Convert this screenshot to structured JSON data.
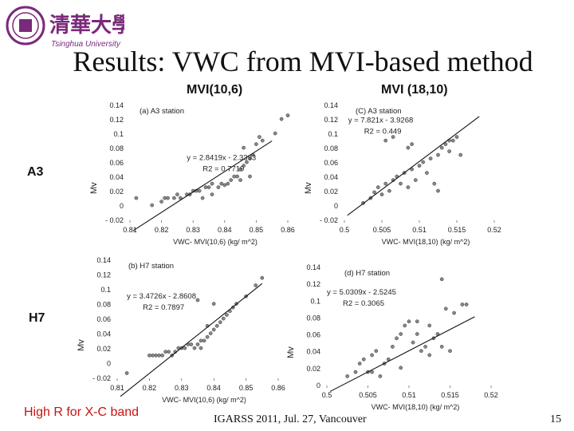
{
  "header": {
    "logo_chinese": "清華大學",
    "logo_english": "Tsinghua University",
    "title": "Results: VWC from MVI-based method"
  },
  "columns": [
    "MVI(10,6)",
    "MVI (18,10)"
  ],
  "rows": [
    "A3",
    "H7"
  ],
  "note": "High R for X-C band",
  "footer": {
    "conference": "IGARSS 2011, Jul. 27, Vancouver",
    "page": "15"
  },
  "colors": {
    "note": "#cc1111",
    "points": "#888888"
  },
  "chart_data": [
    {
      "id": "a3-mvi106",
      "type": "scatter",
      "title": "(a) A3 station",
      "xlabel": "VWC- MVI(10,6) (kg/ m^2)",
      "ylabel": "Mv",
      "xlim": [
        0.81,
        0.86
      ],
      "ylim": [
        -0.02,
        0.14
      ],
      "xticks": [
        "0.81",
        "0.82",
        "0.83",
        "0.84",
        "0.85",
        "0.86"
      ],
      "yticks": [
        "- 0.02",
        "0",
        "0.02",
        "0.04",
        "0.06",
        "0.08",
        "0.1",
        "0.12",
        "0.14"
      ],
      "equation": "y = 2.8419x - 2.3393",
      "r2": "R2 = 0.7719",
      "trendline": {
        "slope": 2.8419,
        "intercept": -2.3393
      },
      "points": [
        [
          0.812,
          0.011
        ],
        [
          0.817,
          0.001
        ],
        [
          0.82,
          0.006
        ],
        [
          0.821,
          0.011
        ],
        [
          0.822,
          0.011
        ],
        [
          0.824,
          0.011
        ],
        [
          0.825,
          0.016
        ],
        [
          0.826,
          0.011
        ],
        [
          0.828,
          0.016
        ],
        [
          0.829,
          0.016
        ],
        [
          0.83,
          0.021
        ],
        [
          0.831,
          0.021
        ],
        [
          0.832,
          0.021
        ],
        [
          0.834,
          0.026
        ],
        [
          0.835,
          0.026
        ],
        [
          0.836,
          0.031
        ],
        [
          0.838,
          0.026
        ],
        [
          0.839,
          0.031
        ],
        [
          0.84,
          0.029
        ],
        [
          0.841,
          0.031
        ],
        [
          0.842,
          0.036
        ],
        [
          0.843,
          0.041
        ],
        [
          0.844,
          0.041
        ],
        [
          0.845,
          0.051
        ],
        [
          0.846,
          0.056
        ],
        [
          0.847,
          0.061
        ],
        [
          0.848,
          0.066
        ],
        [
          0.849,
          0.071
        ],
        [
          0.85,
          0.086
        ],
        [
          0.851,
          0.096
        ],
        [
          0.852,
          0.091
        ],
        [
          0.856,
          0.101
        ],
        [
          0.858,
          0.121
        ],
        [
          0.86,
          0.126
        ],
        [
          0.845,
          0.036
        ],
        [
          0.848,
          0.041
        ],
        [
          0.836,
          0.016
        ],
        [
          0.833,
          0.011
        ],
        [
          0.846,
          0.081
        ]
      ]
    },
    {
      "id": "a3-mvi1810",
      "type": "scatter",
      "title": "(C) A3 station",
      "xlabel": "VWC- MVI(18,10) (kg/ m^2)",
      "ylabel": "Mv",
      "xlim": [
        0.5,
        0.52
      ],
      "ylim": [
        -0.02,
        0.14
      ],
      "xticks": [
        "0.5",
        "0.505",
        "0.51",
        "0.515",
        "0.52"
      ],
      "yticks": [
        "- 0.02",
        "0",
        "0.02",
        "0.04",
        "0.06",
        "0.08",
        "0.1",
        "0.12",
        "0.14"
      ],
      "equation": "y = 7.821x - 3.9268",
      "r2": "R2 = 0.449",
      "trendline": {
        "slope": 7.821,
        "intercept": -3.9268
      },
      "points": [
        [
          0.5025,
          0.004
        ],
        [
          0.5035,
          0.011
        ],
        [
          0.504,
          0.019
        ],
        [
          0.5045,
          0.026
        ],
        [
          0.505,
          0.016
        ],
        [
          0.5055,
          0.031
        ],
        [
          0.506,
          0.021
        ],
        [
          0.5065,
          0.036
        ],
        [
          0.507,
          0.041
        ],
        [
          0.5075,
          0.031
        ],
        [
          0.508,
          0.046
        ],
        [
          0.5085,
          0.026
        ],
        [
          0.509,
          0.051
        ],
        [
          0.5095,
          0.036
        ],
        [
          0.51,
          0.056
        ],
        [
          0.5105,
          0.061
        ],
        [
          0.511,
          0.046
        ],
        [
          0.5115,
          0.066
        ],
        [
          0.512,
          0.031
        ],
        [
          0.5125,
          0.071
        ],
        [
          0.513,
          0.081
        ],
        [
          0.5135,
          0.086
        ],
        [
          0.514,
          0.076
        ],
        [
          0.5145,
          0.091
        ],
        [
          0.515,
          0.096
        ],
        [
          0.5155,
          0.071
        ],
        [
          0.5055,
          0.091
        ],
        [
          0.5065,
          0.096
        ],
        [
          0.509,
          0.086
        ],
        [
          0.5125,
          0.021
        ],
        [
          0.5085,
          0.081
        ],
        [
          0.514,
          0.091
        ]
      ]
    },
    {
      "id": "h7-mvi106",
      "type": "scatter",
      "title": "(b) H7 station",
      "xlabel": "VWC- MVI(10,6) (kg/ m^2)",
      "ylabel": "Mv",
      "xlim": [
        0.81,
        0.86
      ],
      "ylim": [
        -0.02,
        0.14
      ],
      "xticks": [
        "0.81",
        "0.82",
        "0.83",
        "0.84",
        "0.85",
        "0.86"
      ],
      "yticks": [
        "- 0.02",
        "0",
        "0.02",
        "0.04",
        "0.06",
        "0.08",
        "0.1",
        "0.12",
        "0.14"
      ],
      "equation": "y = 3.4726x - 2.8608",
      "r2": "R2 = 0.7897",
      "trendline": {
        "slope": 3.4726,
        "intercept": -2.8608
      },
      "points": [
        [
          0.813,
          -0.013
        ],
        [
          0.82,
          0.011
        ],
        [
          0.821,
          0.011
        ],
        [
          0.822,
          0.011
        ],
        [
          0.823,
          0.011
        ],
        [
          0.824,
          0.011
        ],
        [
          0.825,
          0.016
        ],
        [
          0.826,
          0.016
        ],
        [
          0.827,
          0.011
        ],
        [
          0.828,
          0.016
        ],
        [
          0.829,
          0.021
        ],
        [
          0.83,
          0.021
        ],
        [
          0.831,
          0.021
        ],
        [
          0.832,
          0.026
        ],
        [
          0.833,
          0.026
        ],
        [
          0.834,
          0.021
        ],
        [
          0.835,
          0.026
        ],
        [
          0.836,
          0.031
        ],
        [
          0.837,
          0.031
        ],
        [
          0.838,
          0.036
        ],
        [
          0.839,
          0.041
        ],
        [
          0.84,
          0.046
        ],
        [
          0.841,
          0.051
        ],
        [
          0.842,
          0.056
        ],
        [
          0.843,
          0.061
        ],
        [
          0.844,
          0.066
        ],
        [
          0.845,
          0.071
        ],
        [
          0.846,
          0.076
        ],
        [
          0.847,
          0.081
        ],
        [
          0.85,
          0.091
        ],
        [
          0.853,
          0.106
        ],
        [
          0.855,
          0.116
        ],
        [
          0.84,
          0.081
        ],
        [
          0.836,
          0.021
        ],
        [
          0.835,
          0.086
        ],
        [
          0.838,
          0.051
        ]
      ]
    },
    {
      "id": "h7-mvi1810",
      "type": "scatter",
      "title": "(d) H7 station",
      "xlabel": "VWC- MVI(18,10) (kg/ m^2)",
      "ylabel": "Mv",
      "xlim": [
        0.5,
        0.52
      ],
      "ylim": [
        0,
        0.14
      ],
      "xticks": [
        "0.5",
        "0.505",
        "0.51",
        "0.515",
        "0.52"
      ],
      "yticks": [
        "0",
        "0.02",
        "0.04",
        "0.06",
        "0.08",
        "0.1",
        "0.12",
        "0.14"
      ],
      "equation": "y = 5.0309x - 2.5245",
      "r2": "R2 = 0.3065",
      "trendline": {
        "slope": 5.0309,
        "intercept": -2.5245
      },
      "points": [
        [
          0.5025,
          0.011
        ],
        [
          0.5035,
          0.016
        ],
        [
          0.504,
          0.026
        ],
        [
          0.5045,
          0.031
        ],
        [
          0.505,
          0.016
        ],
        [
          0.5055,
          0.036
        ],
        [
          0.506,
          0.041
        ],
        [
          0.5065,
          0.011
        ],
        [
          0.507,
          0.026
        ],
        [
          0.5075,
          0.031
        ],
        [
          0.508,
          0.046
        ],
        [
          0.5085,
          0.056
        ],
        [
          0.509,
          0.061
        ],
        [
          0.5095,
          0.071
        ],
        [
          0.51,
          0.076
        ],
        [
          0.5105,
          0.051
        ],
        [
          0.511,
          0.061
        ],
        [
          0.5115,
          0.041
        ],
        [
          0.512,
          0.046
        ],
        [
          0.5125,
          0.071
        ],
        [
          0.513,
          0.056
        ],
        [
          0.5135,
          0.061
        ],
        [
          0.514,
          0.046
        ],
        [
          0.5145,
          0.091
        ],
        [
          0.515,
          0.041
        ],
        [
          0.5155,
          0.086
        ],
        [
          0.5165,
          0.096
        ],
        [
          0.517,
          0.096
        ],
        [
          0.514,
          0.126
        ],
        [
          0.5055,
          0.016
        ],
        [
          0.509,
          0.021
        ],
        [
          0.511,
          0.076
        ],
        [
          0.5125,
          0.036
        ]
      ]
    }
  ]
}
